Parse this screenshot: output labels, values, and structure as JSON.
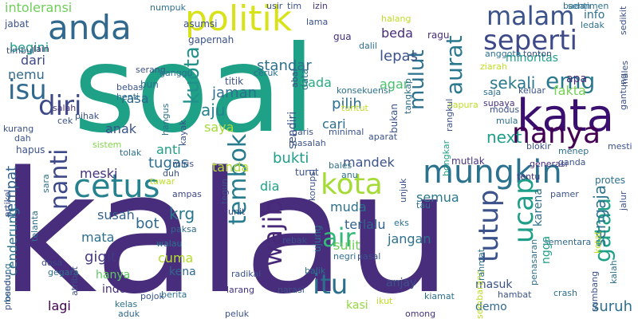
{
  "words": [
    {
      "text": "kalau",
      "size": 210,
      "color": "#472d7b",
      "rot": 0
    },
    {
      "text": "soal",
      "size": 150,
      "color": "#1fa187",
      "rot": 0
    },
    {
      "text": "kata",
      "size": 56,
      "color": "#3b0f70",
      "rot": 0
    },
    {
      "text": "politik",
      "size": 44,
      "color": "#d8e219",
      "rot": 0
    },
    {
      "text": "anda",
      "size": 42,
      "color": "#31688e",
      "rot": 0
    },
    {
      "text": "mungkin",
      "size": 40,
      "color": "#2c728e",
      "rot": 0
    },
    {
      "text": "cetus",
      "size": 40,
      "color": "#26828e",
      "rot": 0
    },
    {
      "text": "nanya",
      "size": 36,
      "color": "#440154",
      "rot": 0
    },
    {
      "text": "seperti",
      "size": 34,
      "color": "#3e4989",
      "rot": 0
    },
    {
      "text": "malam",
      "size": 32,
      "color": "#3b528b",
      "rot": 0
    },
    {
      "text": "kota",
      "size": 36,
      "color": "#a5db36",
      "rot": 0
    },
    {
      "text": "diri",
      "size": 34,
      "color": "#3e4989",
      "rot": 0
    },
    {
      "text": "isu",
      "size": 34,
      "color": "#31688e",
      "rot": 0
    },
    {
      "text": "itu",
      "size": 34,
      "color": "#2d708e",
      "rot": 0
    },
    {
      "text": "air",
      "size": 32,
      "color": "#35b779",
      "rot": 0
    },
    {
      "text": "emg",
      "size": 28,
      "color": "#2a788e",
      "rot": 0
    },
    {
      "text": "tembok",
      "size": 30,
      "color": "#287c8e",
      "rot": -90
    },
    {
      "text": "wajib",
      "size": 32,
      "color": "#482878",
      "rot": -90
    },
    {
      "text": "nanti",
      "size": 30,
      "color": "#3e4989",
      "rot": -90
    },
    {
      "text": "kuota",
      "size": 26,
      "color": "#21918c",
      "rot": -90
    },
    {
      "text": "ucap",
      "size": 34,
      "color": "#1f9e89",
      "rot": -90
    },
    {
      "text": "tutup",
      "size": 34,
      "color": "#3b528b",
      "rot": -90
    },
    {
      "text": "gatau",
      "size": 28,
      "color": "#1fa187",
      "rot": -90
    },
    {
      "text": "aurat",
      "size": 28,
      "color": "#2a788e",
      "rot": -90
    },
    {
      "text": "mulut",
      "size": 26,
      "color": "#2c728e",
      "rot": -90
    },
    {
      "text": "sengaja",
      "size": 20,
      "color": "#2c728e",
      "rot": -90
    },
    {
      "text": "tempat",
      "size": 18,
      "color": "#33638d",
      "rot": -90
    },
    {
      "text": "cenderung",
      "size": 16,
      "color": "#2d708e",
      "rot": -90
    },
    {
      "text": "suruh",
      "size": 18,
      "color": "#2d708e",
      "rot": 0
    },
    {
      "text": "sekali",
      "size": 20,
      "color": "#2a788e",
      "rot": 0
    },
    {
      "text": "next",
      "size": 20,
      "color": "#1f9e89",
      "rot": 0
    },
    {
      "text": "fakta",
      "size": 16,
      "color": "#75d054",
      "rot": 0
    },
    {
      "text": "semua",
      "size": 16,
      "color": "#2a788e",
      "rot": 0
    },
    {
      "text": "standar",
      "size": 18,
      "color": "#2d708e",
      "rot": 0
    },
    {
      "text": "lepas",
      "size": 18,
      "color": "#3b528b",
      "rot": 0
    },
    {
      "text": "beda",
      "size": 16,
      "color": "#472d7b",
      "rot": 0
    },
    {
      "text": "agar",
      "size": 16,
      "color": "#4ac16d",
      "rot": 0
    },
    {
      "text": "pilih",
      "size": 18,
      "color": "#2d708e",
      "rot": 0
    },
    {
      "text": "pada",
      "size": 16,
      "color": "#27ad81",
      "rot": 0
    },
    {
      "text": "rasa",
      "size": 16,
      "color": "#31688e",
      "rot": 0
    },
    {
      "text": "jaman",
      "size": 18,
      "color": "#2d708e",
      "rot": 0
    },
    {
      "text": "aju",
      "size": 20,
      "color": "#26828e",
      "rot": 0
    },
    {
      "text": "saya",
      "size": 16,
      "color": "#a5db36",
      "rot": 0
    },
    {
      "text": "anti",
      "size": 16,
      "color": "#1f9e89",
      "rot": 0
    },
    {
      "text": "tugas",
      "size": 18,
      "color": "#2d708e",
      "rot": 0
    },
    {
      "text": "tanda",
      "size": 16,
      "color": "#b5de2b",
      "rot": 0
    },
    {
      "text": "bukti",
      "size": 18,
      "color": "#1f9e89",
      "rot": 0
    },
    {
      "text": "mandek",
      "size": 16,
      "color": "#3b528b",
      "rot": 0
    },
    {
      "text": "meski",
      "size": 16,
      "color": "#46327e",
      "rot": 0
    },
    {
      "text": "anak",
      "size": 16,
      "color": "#3b528b",
      "rot": 0
    },
    {
      "text": "dia",
      "size": 16,
      "color": "#1fa187",
      "rot": 0
    },
    {
      "text": "muda",
      "size": 16,
      "color": "#2d708e",
      "rot": 0
    },
    {
      "text": "terlalu",
      "size": 16,
      "color": "#33638d",
      "rot": 0
    },
    {
      "text": "jangan",
      "size": 16,
      "color": "#2d708e",
      "rot": 0
    },
    {
      "text": "sulit",
      "size": 16,
      "color": "#6ece58",
      "rot": 0
    },
    {
      "text": "krg",
      "size": 20,
      "color": "#2a788e",
      "rot": 0
    },
    {
      "text": "bot",
      "size": 18,
      "color": "#31688e",
      "rot": 0
    },
    {
      "text": "susah",
      "size": 16,
      "color": "#33638d",
      "rot": 0
    },
    {
      "text": "mata",
      "size": 16,
      "color": "#2d708e",
      "rot": 0
    },
    {
      "text": "gigit",
      "size": 18,
      "color": "#443983",
      "rot": 0
    },
    {
      "text": "cuma",
      "size": 16,
      "color": "#b5de2b",
      "rot": 0
    },
    {
      "text": "kena",
      "size": 14,
      "color": "#31688e",
      "rot": 0
    },
    {
      "text": "hanya",
      "size": 14,
      "color": "#5ec962",
      "rot": 0
    },
    {
      "text": "indo",
      "size": 14,
      "color": "#472d7b",
      "rot": 0
    },
    {
      "text": "lagi",
      "size": 16,
      "color": "#440154",
      "rot": 0
    },
    {
      "text": "kasi",
      "size": 14,
      "color": "#93d741",
      "rot": 0
    },
    {
      "text": "anjay",
      "size": 14,
      "color": "#3b528b",
      "rot": 0
    },
    {
      "text": "demo",
      "size": 14,
      "color": "#31688e",
      "rot": 0
    },
    {
      "text": "masuk",
      "size": 14,
      "color": "#3b528b",
      "rot": 0
    },
    {
      "text": "begini",
      "size": 16,
      "color": "#1fa187",
      "rot": 0
    },
    {
      "text": "dari",
      "size": 16,
      "color": "#3e4989",
      "rot": 0
    },
    {
      "text": "nemu",
      "size": 16,
      "color": "#31688e",
      "rot": 0
    },
    {
      "text": "intoleransi",
      "size": 16,
      "color": "#6ece58",
      "rot": 0
    },
    {
      "text": "sendiri",
      "size": 14,
      "color": "#3b528b",
      "rot": -90
    },
    {
      "text": "cari",
      "size": 16,
      "color": "#2d708e",
      "rot": 0
    },
    {
      "text": "minoritas",
      "size": 14,
      "color": "#1f9e89",
      "rot": 0
    },
    {
      "text": "apa",
      "size": 14,
      "color": "#472d7b",
      "rot": 0
    },
    {
      "text": "info",
      "size": 14,
      "color": "#2d708e",
      "rot": 0
    },
    {
      "text": "protes",
      "size": 12,
      "color": "#2d708e",
      "rot": 0
    },
    {
      "text": "mutlak",
      "size": 12,
      "color": "#46327e",
      "rot": 0
    },
    {
      "text": "gapernah",
      "size": 12,
      "color": "#3b528b",
      "rot": 0
    },
    {
      "text": "jabat",
      "size": 12,
      "color": "#3b528b",
      "rot": 0
    },
    {
      "text": "ragu",
      "size": 12,
      "color": "#472d7b",
      "rot": 0
    },
    {
      "text": "gua",
      "size": 12,
      "color": "#46327e",
      "rot": 0
    },
    {
      "text": "asumsi",
      "size": 12,
      "color": "#3b528b",
      "rot": 0
    },
    {
      "text": "numpuk",
      "size": 11,
      "color": "#2d708e",
      "rot": 0
    },
    {
      "text": "hapus",
      "size": 12,
      "color": "#3b528b",
      "rot": 0
    },
    {
      "text": "kurang",
      "size": 11,
      "color": "#3b528b",
      "rot": 0
    },
    {
      "text": "dosa",
      "size": 11,
      "color": "#3e4989",
      "rot": 0
    },
    {
      "text": "gegara",
      "size": 11,
      "color": "#2d708e",
      "rot": 0
    },
    {
      "text": "kelas",
      "size": 11,
      "color": "#2d708e",
      "rot": 0
    },
    {
      "text": "aduk",
      "size": 11,
      "color": "#31688e",
      "rot": 0
    },
    {
      "text": "pojok",
      "size": 11,
      "color": "#3b528b",
      "rot": 0
    },
    {
      "text": "berita",
      "size": 11,
      "color": "#2d708e",
      "rot": 0
    },
    {
      "text": "peluk",
      "size": 11,
      "color": "#3b528b",
      "rot": 0
    },
    {
      "text": "larang",
      "size": 11,
      "color": "#46327e",
      "rot": 0
    },
    {
      "text": "radikal",
      "size": 11,
      "color": "#3b528b",
      "rot": 0
    },
    {
      "text": "narasi",
      "size": 11,
      "color": "#3b528b",
      "rot": 0
    },
    {
      "text": "omong",
      "size": 11,
      "color": "#46327e",
      "rot": 0
    },
    {
      "text": "kiamat",
      "size": 11,
      "color": "#2d708e",
      "rot": 0
    },
    {
      "text": "crash",
      "size": 11,
      "color": "#2d708e",
      "rot": 0
    },
    {
      "text": "hambat",
      "size": 11,
      "color": "#3b528b",
      "rot": 0
    },
    {
      "text": "sementara",
      "size": 11,
      "color": "#31688e",
      "rot": 0
    },
    {
      "text": "generasi",
      "size": 11,
      "color": "#472d7b",
      "rot": 0
    },
    {
      "text": "pamer",
      "size": 11,
      "color": "#3b528b",
      "rot": 0
    },
    {
      "text": "tentu",
      "size": 11,
      "color": "#46327e",
      "rot": 0
    },
    {
      "text": "blokir",
      "size": 11,
      "color": "#3b528b",
      "rot": 0
    },
    {
      "text": "menep",
      "size": 11,
      "color": "#2d708e",
      "rot": 0
    },
    {
      "text": "mesti",
      "size": 11,
      "color": "#3b528b",
      "rot": 0
    },
    {
      "text": "ganda",
      "size": 11,
      "color": "#3b528b",
      "rot": 0
    },
    {
      "text": "paksa",
      "size": 11,
      "color": "#31688e",
      "rot": 0
    },
    {
      "text": "walau",
      "size": 11,
      "color": "#2d708e",
      "rot": 0
    },
    {
      "text": "ampas",
      "size": 11,
      "color": "#3e4989",
      "rot": 0
    },
    {
      "text": "miris",
      "size": 11,
      "color": "#3b528b",
      "rot": 0
    },
    {
      "text": "duh",
      "size": 11,
      "color": "#3b528b",
      "rot": 0
    },
    {
      "text": "tawar",
      "size": 11,
      "color": "#bddf26",
      "rot": 0
    },
    {
      "text": "tolak",
      "size": 11,
      "color": "#2d708e",
      "rot": 0
    },
    {
      "text": "sistem",
      "size": 11,
      "color": "#84d44b",
      "rot": 0
    },
    {
      "text": "dah",
      "size": 11,
      "color": "#3b528b",
      "rot": 0
    },
    {
      "text": "cek",
      "size": 11,
      "color": "#3b528b",
      "rot": 0
    },
    {
      "text": "salah",
      "size": 11,
      "color": "#46327e",
      "rot": 0
    },
    {
      "text": "pihak",
      "size": 11,
      "color": "#3b528b",
      "rot": 0
    },
    {
      "text": "bebas",
      "size": 11,
      "color": "#3b528b",
      "rot": 0
    },
    {
      "text": "henti",
      "size": 11,
      "color": "#2d708e",
      "rot": 0
    },
    {
      "text": "bun",
      "size": 12,
      "color": "#2d708e",
      "rot": 0
    },
    {
      "text": "titik",
      "size": 12,
      "color": "#3b528b",
      "rot": 0
    },
    {
      "text": "ceruk",
      "size": 11,
      "color": "#2d708e",
      "rot": 0
    },
    {
      "text": "masalah",
      "size": 11,
      "color": "#3b528b",
      "rot": 0
    },
    {
      "text": "garis",
      "size": 11,
      "color": "#3b528b",
      "rot": 0
    },
    {
      "text": "minimal",
      "size": 11,
      "color": "#3b528b",
      "rot": 0
    },
    {
      "text": "aparat",
      "size": 11,
      "color": "#3b528b",
      "rot": 0
    },
    {
      "text": "tuntut",
      "size": 11,
      "color": "#bddf26",
      "rot": 0
    },
    {
      "text": "konsekuensi",
      "size": 11,
      "color": "#2d708e",
      "rot": 0
    },
    {
      "text": "keluar",
      "size": 11,
      "color": "#3b528b",
      "rot": 0
    },
    {
      "text": "modus",
      "size": 11,
      "color": "#3b528b",
      "rot": 0
    },
    {
      "text": "mula",
      "size": 11,
      "color": "#2d708e",
      "rot": 0
    },
    {
      "text": "saja",
      "size": 11,
      "color": "#2d708e",
      "rot": 0
    },
    {
      "text": "supaya",
      "size": 11,
      "color": "#46327e",
      "rot": 0
    },
    {
      "text": "sapura",
      "size": 11,
      "color": "#bddf26",
      "rot": 0
    },
    {
      "text": "ziarah",
      "size": 11,
      "color": "#bddf26",
      "rot": 0
    },
    {
      "text": "anggota",
      "size": 11,
      "color": "#2d708e",
      "rot": 0
    },
    {
      "text": "tonton",
      "size": 11,
      "color": "#3b528b",
      "rot": 0
    },
    {
      "text": "ledak",
      "size": 11,
      "color": "#2d708e",
      "rot": 0
    },
    {
      "text": "sentimen",
      "size": 11,
      "color": "#2d708e",
      "rot": 0
    },
    {
      "text": "badan",
      "size": 11,
      "color": "#2d708e",
      "rot": 0
    },
    {
      "text": "usir",
      "size": 11,
      "color": "#3b528b",
      "rot": 0
    },
    {
      "text": "tim",
      "size": 11,
      "color": "#3b528b",
      "rot": 0
    },
    {
      "text": "izin",
      "size": 11,
      "color": "#46327e",
      "rot": 0
    },
    {
      "text": "lama",
      "size": 11,
      "color": "#3b528b",
      "rot": 0
    },
    {
      "text": "dalil",
      "size": 11,
      "color": "#2d708e",
      "rot": 0
    },
    {
      "text": "halang",
      "size": 11,
      "color": "#bddf26",
      "rot": 0
    },
    {
      "text": "serang",
      "size": 11,
      "color": "#3b528b",
      "rot": 0
    },
    {
      "text": "ganggu",
      "size": 11,
      "color": "#2d708e",
      "rot": 0
    },
    {
      "text": "timbul",
      "size": 11,
      "color": "#3b528b",
      "rot": 0
    },
    {
      "text": "lain",
      "size": 11,
      "color": "#46327e",
      "rot": 0
    },
    {
      "text": "eks",
      "size": 11,
      "color": "#2d708e",
      "rot": 0
    },
    {
      "text": "unit",
      "size": 11,
      "color": "#3b528b",
      "rot": 0
    },
    {
      "text": "anu",
      "size": 11,
      "color": "#2d708e",
      "rot": 0
    },
    {
      "text": "bales",
      "size": 11,
      "color": "#2d708e",
      "rot": 0
    },
    {
      "text": "turut",
      "size": 12,
      "color": "#3b528b",
      "rot": 0
    },
    {
      "text": "ikut",
      "size": 11,
      "color": "#bddf26",
      "rot": 0
    },
    {
      "text": "rebak",
      "size": 11,
      "color": "#3b528b",
      "rot": 0
    },
    {
      "text": "negri",
      "size": 11,
      "color": "#2d708e",
      "rot": 0
    },
    {
      "text": "pasal",
      "size": 11,
      "color": "#3b528b",
      "rot": 0
    },
    {
      "text": "tau",
      "size": 11,
      "color": "#2d708e",
      "rot": 0
    },
    {
      "text": "balik",
      "size": 11,
      "color": "#2d708e",
      "rot": 0
    },
    {
      "text": "rangkul",
      "size": 11,
      "color": "#3b528b",
      "rot": -90
    },
    {
      "text": "bongkar",
      "size": 11,
      "color": "#1fa187",
      "rot": -90
    },
    {
      "text": "bukan",
      "size": 12,
      "color": "#3b528b",
      "rot": -90
    },
    {
      "text": "tangkap",
      "size": 11,
      "color": "#2d708e",
      "rot": -90
    },
    {
      "text": "kayak",
      "size": 11,
      "color": "#3b528b",
      "rot": -90
    },
    {
      "text": "hangus",
      "size": 11,
      "color": "#2d708e",
      "rot": -90
    },
    {
      "text": "sara",
      "size": 11,
      "color": "#2d708e",
      "rot": -90
    },
    {
      "text": "atribut",
      "size": 11,
      "color": "#3b528b",
      "rot": -90
    },
    {
      "text": "artikel",
      "size": 11,
      "color": "#3b528b",
      "rot": -90
    },
    {
      "text": "bendung",
      "size": 11,
      "color": "#2d708e",
      "rot": -90
    },
    {
      "text": "prosedur",
      "size": 11,
      "color": "#3b528b",
      "rot": -90
    },
    {
      "text": "telanta",
      "size": 11,
      "color": "#2d708e",
      "rot": -90
    },
    {
      "text": "tegun",
      "size": 11,
      "color": "#3b528b",
      "rot": -90
    },
    {
      "text": "korupsi",
      "size": 11,
      "color": "#3b528b",
      "rot": -90
    },
    {
      "text": "unjuk",
      "size": 11,
      "color": "#3b528b",
      "rot": -90
    },
    {
      "text": "ujung",
      "size": 12,
      "color": "#2d708e",
      "rot": -90
    },
    {
      "text": "data",
      "size": 12,
      "color": "#2d708e",
      "rot": -90
    },
    {
      "text": "abai",
      "size": 11,
      "color": "#3b528b",
      "rot": -90
    },
    {
      "text": "sembarang",
      "size": 11,
      "color": "#bddf26",
      "rot": -90
    },
    {
      "text": "rahmat",
      "size": 11,
      "color": "#2d708e",
      "rot": -90
    },
    {
      "text": "penasaran",
      "size": 11,
      "color": "#2d708e",
      "rot": -90
    },
    {
      "text": "karena",
      "size": 14,
      "color": "#2d708e",
      "rot": -90
    },
    {
      "text": "ngga",
      "size": 14,
      "color": "#1fa187",
      "rot": -90
    },
    {
      "text": "ketat",
      "size": 11,
      "color": "#bddf26",
      "rot": -90
    },
    {
      "text": "sumbang",
      "size": 11,
      "color": "#3b528b",
      "rot": -90
    },
    {
      "text": "kalah",
      "size": 11,
      "color": "#2d708e",
      "rot": -90
    },
    {
      "text": "jalur",
      "size": 11,
      "color": "#3b528b",
      "rot": -90
    },
    {
      "text": "gantung",
      "size": 11,
      "color": "#3b528b",
      "rot": -90
    },
    {
      "text": "males",
      "size": 11,
      "color": "#3b528b",
      "rot": -90
    },
    {
      "text": "sedikit",
      "size": 11,
      "color": "#3b528b",
      "rot": -90
    }
  ]
}
